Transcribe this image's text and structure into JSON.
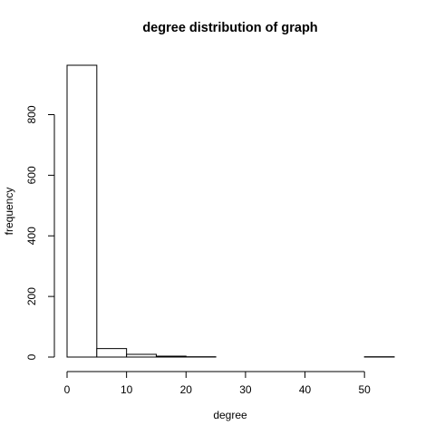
{
  "chart_data": {
    "type": "bar",
    "title": "degree distribution of graph",
    "xlabel": "degree",
    "ylabel": "frequency",
    "bins": [
      {
        "from": 0,
        "to": 5,
        "value": 963
      },
      {
        "from": 5,
        "to": 10,
        "value": 28
      },
      {
        "from": 10,
        "to": 15,
        "value": 9
      },
      {
        "from": 15,
        "to": 20,
        "value": 3
      },
      {
        "from": 20,
        "to": 25,
        "value": 1
      },
      {
        "from": 25,
        "to": 30,
        "value": 0
      },
      {
        "from": 30,
        "to": 35,
        "value": 0
      },
      {
        "from": 35,
        "to": 40,
        "value": 0
      },
      {
        "from": 40,
        "to": 45,
        "value": 0
      },
      {
        "from": 45,
        "to": 50,
        "value": 0
      },
      {
        "from": 50,
        "to": 55,
        "value": 1
      }
    ],
    "xlim": [
      0,
      55
    ],
    "ylim": [
      0,
      963
    ],
    "x_ticks": [
      0,
      10,
      20,
      30,
      40,
      50
    ],
    "y_ticks": [
      0,
      200,
      400,
      600,
      800
    ],
    "grid": false,
    "legend": "none"
  }
}
